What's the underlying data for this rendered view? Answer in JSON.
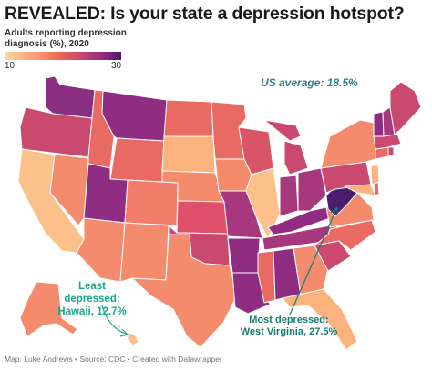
{
  "title": "REVEALED: Is your state a depression hotspot?",
  "legend": {
    "title": "Adults reporting depression diagnosis (%), 2020",
    "min": "10",
    "max": "30",
    "colors": [
      "#fdd49e",
      "#f8a17b",
      "#ef6c5a",
      "#c94a6e",
      "#8e2d82",
      "#4a1b6e"
    ]
  },
  "annotations": {
    "us_average": "US average: 18.5%",
    "least_line1": "Least depressed:",
    "least_line2": "Hawaii, 12.7%",
    "most_line1": "Most depressed:",
    "most_line2": "West Virginia, 27.5%"
  },
  "colors": {
    "annotation_teal": "#2f7e8e",
    "least_color": "#17a98c",
    "most_color": "#1a7a72"
  },
  "footer": "Map: Luke Andrews • Source: CDC • Created with Datawrapper"
}
